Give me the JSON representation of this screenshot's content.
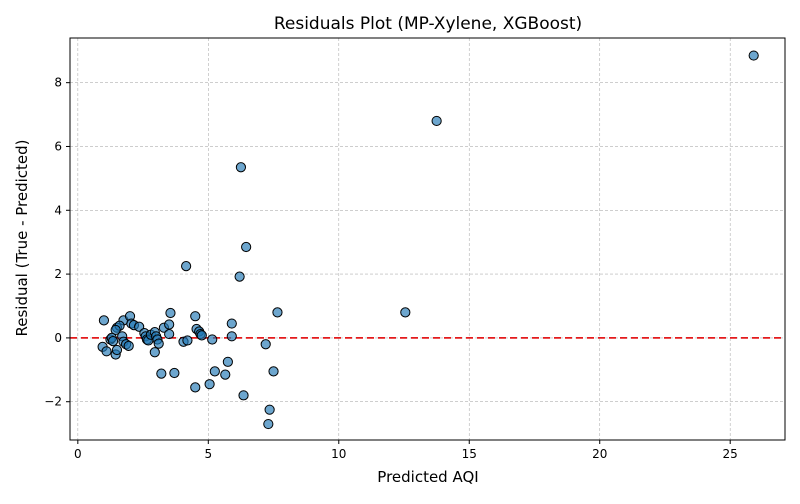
{
  "chart_data": {
    "type": "scatter",
    "title": "Residuals Plot (MP-Xylene, XGBoost)",
    "xlabel": "Predicted AQI",
    "ylabel": "Residual (True - Predicted)",
    "xlim": [
      -0.3,
      27.1
    ],
    "ylim": [
      -3.2,
      9.4
    ],
    "xticks": [
      0,
      5,
      10,
      15,
      20,
      25
    ],
    "yticks": [
      -2,
      0,
      2,
      4,
      6,
      8
    ],
    "xtick_labels": [
      "0",
      "5",
      "10",
      "15",
      "20",
      "25"
    ],
    "ytick_labels": [
      "−2",
      "0",
      "2",
      "4",
      "6",
      "8"
    ],
    "grid": true,
    "reference_line": {
      "y": 0,
      "color": "#e41a1c",
      "style": "dashed"
    },
    "colors": {
      "point_fill": "#1f77b4",
      "point_edge": "#000000",
      "grid": "#b0b0b0"
    },
    "points": [
      [
        25.9,
        8.85
      ],
      [
        13.75,
        6.8
      ],
      [
        6.25,
        5.35
      ],
      [
        6.45,
        2.85
      ],
      [
        4.15,
        2.25
      ],
      [
        6.2,
        1.92
      ],
      [
        12.55,
        0.8
      ],
      [
        7.65,
        0.8
      ],
      [
        3.55,
        0.78
      ],
      [
        4.5,
        0.68
      ],
      [
        1.0,
        0.55
      ],
      [
        1.75,
        0.55
      ],
      [
        2.0,
        0.68
      ],
      [
        2.05,
        0.45
      ],
      [
        2.15,
        0.4
      ],
      [
        2.35,
        0.35
      ],
      [
        1.5,
        0.32
      ],
      [
        1.6,
        0.38
      ],
      [
        1.45,
        0.25
      ],
      [
        3.3,
        0.32
      ],
      [
        3.5,
        0.42
      ],
      [
        5.9,
        0.45
      ],
      [
        4.55,
        0.28
      ],
      [
        4.65,
        0.2
      ],
      [
        4.7,
        0.12
      ],
      [
        4.75,
        0.08
      ],
      [
        5.9,
        0.05
      ],
      [
        3.5,
        0.12
      ],
      [
        2.55,
        0.15
      ],
      [
        2.6,
        0.05
      ],
      [
        2.65,
        -0.05
      ],
      [
        2.7,
        -0.08
      ],
      [
        2.8,
        0.1
      ],
      [
        2.95,
        0.18
      ],
      [
        3.0,
        0.05
      ],
      [
        3.05,
        -0.05
      ],
      [
        3.1,
        -0.18
      ],
      [
        2.95,
        -0.45
      ],
      [
        1.7,
        0.05
      ],
      [
        1.75,
        -0.12
      ],
      [
        1.85,
        -0.2
      ],
      [
        1.95,
        -0.25
      ],
      [
        1.25,
        -0.05
      ],
      [
        1.3,
        0.0
      ],
      [
        1.35,
        -0.1
      ],
      [
        0.95,
        -0.28
      ],
      [
        1.1,
        -0.42
      ],
      [
        1.45,
        -0.52
      ],
      [
        1.5,
        -0.38
      ],
      [
        4.05,
        -0.12
      ],
      [
        4.2,
        -0.08
      ],
      [
        5.15,
        -0.05
      ],
      [
        7.2,
        -0.2
      ],
      [
        5.75,
        -0.75
      ],
      [
        7.5,
        -1.05
      ],
      [
        5.25,
        -1.05
      ],
      [
        5.65,
        -1.15
      ],
      [
        3.7,
        -1.1
      ],
      [
        3.2,
        -1.12
      ],
      [
        5.05,
        -1.45
      ],
      [
        4.5,
        -1.55
      ],
      [
        6.35,
        -1.8
      ],
      [
        7.35,
        -2.25
      ],
      [
        7.3,
        -2.7
      ]
    ]
  }
}
